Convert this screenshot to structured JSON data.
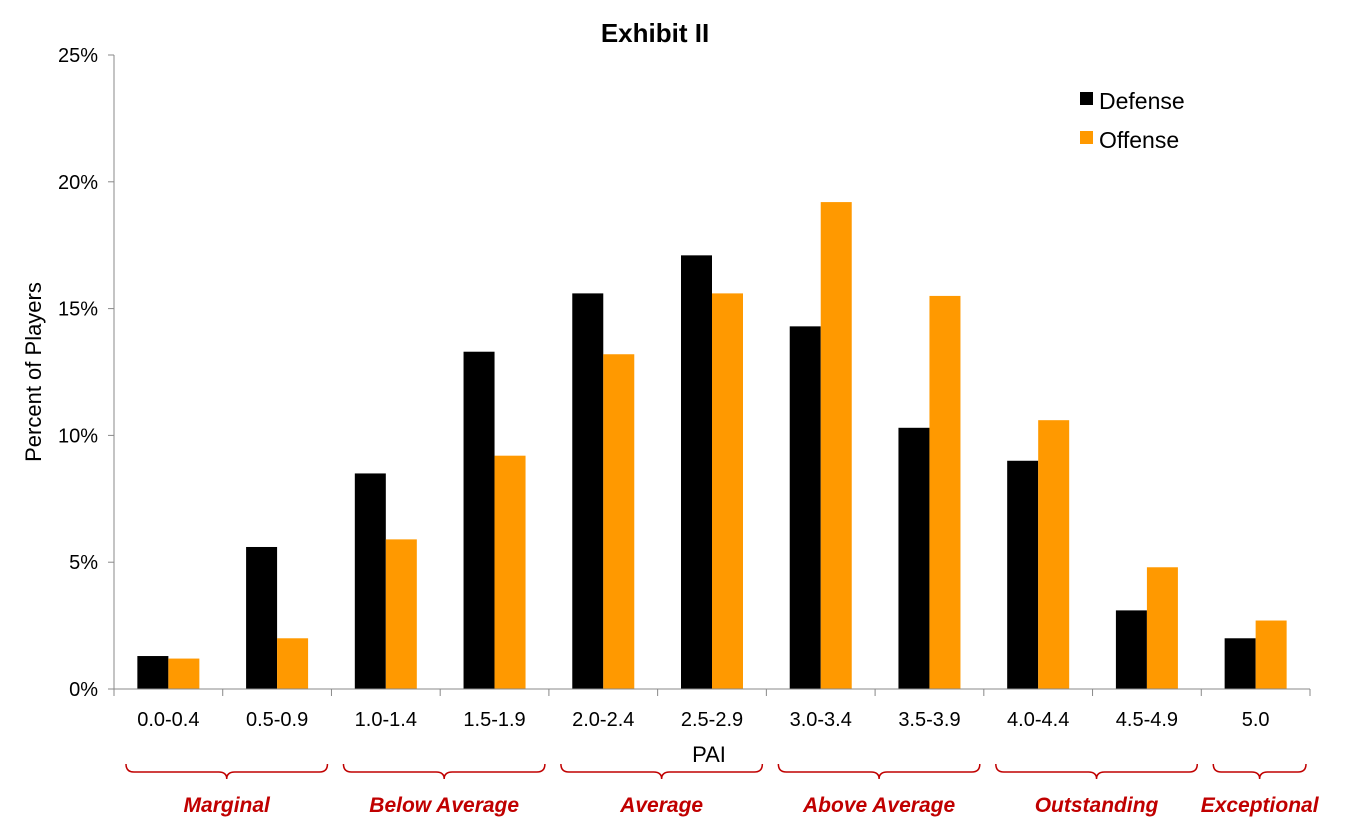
{
  "chart_data": {
    "type": "bar",
    "title": "Exhibit II",
    "xlabel": "PAI",
    "ylabel": "Percent of Players",
    "categories": [
      "0.0-0.4",
      "0.5-0.9",
      "1.0-1.4",
      "1.5-1.9",
      "2.0-2.4",
      "2.5-2.9",
      "3.0-3.4",
      "3.5-3.9",
      "4.0-4.4",
      "4.5-4.9",
      "5.0"
    ],
    "series": [
      {
        "name": "Defense",
        "color": "#000000",
        "values": [
          1.3,
          5.6,
          8.5,
          13.3,
          15.6,
          17.1,
          14.3,
          10.3,
          9.0,
          3.1,
          2.0
        ]
      },
      {
        "name": "Offense",
        "color": "#FF9900",
        "values": [
          1.2,
          2.0,
          5.9,
          9.2,
          13.2,
          15.6,
          19.2,
          15.5,
          10.6,
          4.8,
          2.7
        ]
      }
    ],
    "ylim": [
      0,
      25
    ],
    "yticks": [
      0,
      5,
      10,
      15,
      20,
      25
    ],
    "ytick_labels": [
      "0%",
      "5%",
      "10%",
      "15%",
      "20%",
      "25%"
    ],
    "grid": false,
    "legend_position": "top-right",
    "category_groups": [
      {
        "label": "Marginal",
        "start": 0,
        "end": 1
      },
      {
        "label": "Below Average",
        "start": 2,
        "end": 3
      },
      {
        "label": "Average",
        "start": 4,
        "end": 5
      },
      {
        "label": "Above Average",
        "start": 6,
        "end": 7
      },
      {
        "label": "Outstanding",
        "start": 8,
        "end": 9
      },
      {
        "label": "Exceptional",
        "start": 10,
        "end": 10
      }
    ],
    "group_label_color": "#C00000"
  }
}
